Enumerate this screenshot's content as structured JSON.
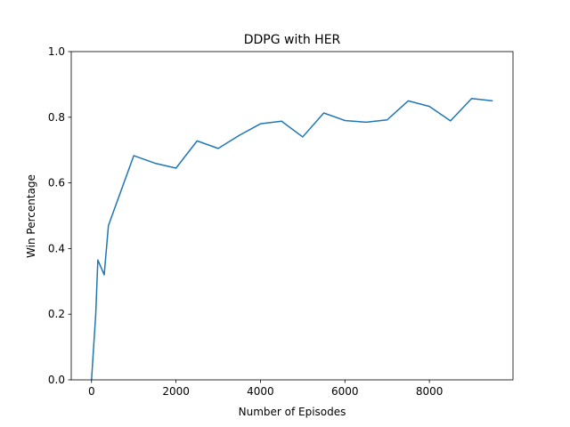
{
  "chart_data": {
    "type": "line",
    "title": "DDPG with HER",
    "xlabel": "Number of Episodes",
    "ylabel": "Win Percentage",
    "xlim": [
      -480,
      9980
    ],
    "ylim": [
      0.0,
      1.0
    ],
    "xticks": [
      0,
      2000,
      4000,
      6000,
      8000
    ],
    "xtick_labels": [
      "0",
      "2000",
      "4000",
      "6000",
      "8000"
    ],
    "yticks": [
      0.0,
      0.2,
      0.4,
      0.6,
      0.8,
      1.0
    ],
    "ytick_labels": [
      "0.0",
      "0.2",
      "0.4",
      "0.6",
      "0.8",
      "1.0"
    ],
    "grid": false,
    "legend": "none",
    "color": "#1f77b4",
    "series": [
      {
        "x": [
          0,
          100,
          150,
          300,
          400,
          1000,
          1500,
          2000,
          2500,
          3000,
          3500,
          4000,
          4500,
          5000,
          5500,
          6000,
          6500,
          7000,
          7500,
          8000,
          8500,
          9000,
          9500
        ],
        "y": [
          0.0,
          0.2,
          0.365,
          0.32,
          0.47,
          0.683,
          0.66,
          0.645,
          0.728,
          0.705,
          0.745,
          0.78,
          0.788,
          0.74,
          0.813,
          0.79,
          0.785,
          0.792,
          0.85,
          0.833,
          0.789,
          0.857,
          0.85
        ]
      }
    ]
  }
}
